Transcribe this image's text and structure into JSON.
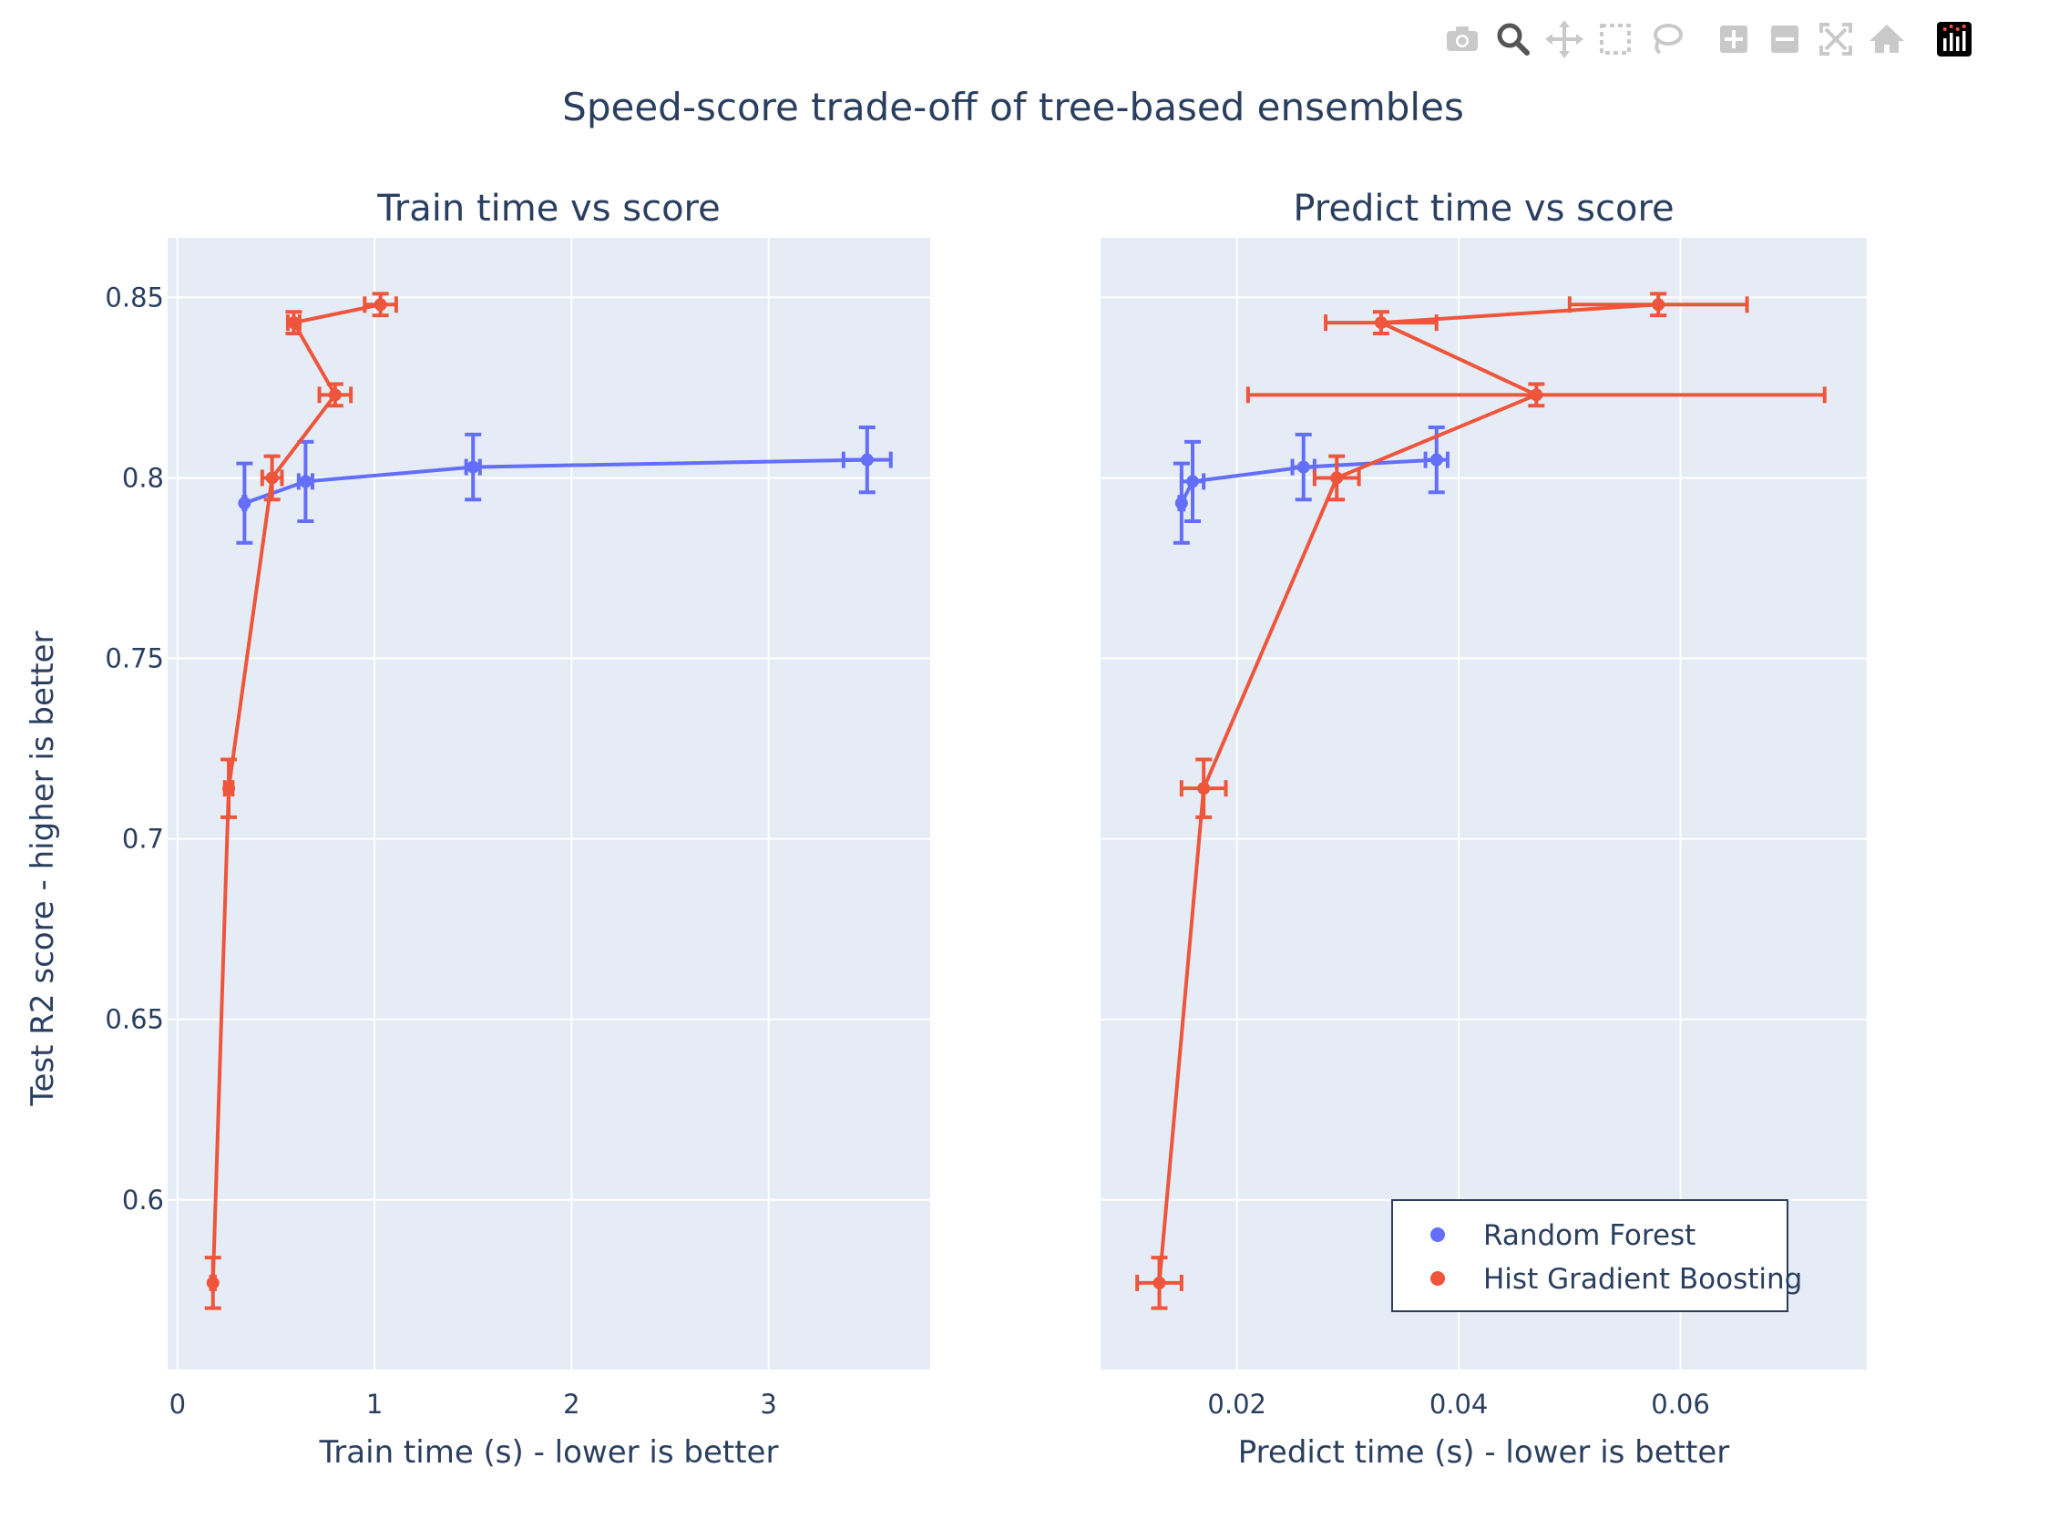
{
  "title": "Speed-score trade-off of tree-based ensembles",
  "ylabel": "Test R2 score - higher is better",
  "toolbar": {
    "icons": [
      "camera-icon",
      "zoom-icon",
      "pan-icon",
      "box-select-icon",
      "lasso-select-icon",
      "zoom-in-icon",
      "zoom-out-icon",
      "autoscale-icon",
      "reset-axes-icon",
      "plotly-logo-icon"
    ]
  },
  "colors": {
    "rf": "#636efa",
    "hgb": "#ef553b",
    "plot_bg": "#e5ecf6",
    "grid": "#ffffff",
    "text": "#2a3f5f"
  },
  "legend": {
    "placement": "bottom-right",
    "entries": [
      "Random Forest",
      "Hist Gradient Boosting"
    ]
  },
  "chart_data": [
    {
      "type": "scatter",
      "title": "Train time vs score",
      "xlabel": "Train time (s) - lower is better",
      "ylabel": "Test R2 score - higher is better",
      "xlim": [
        -0.05,
        3.82
      ],
      "ylim": [
        0.553,
        0.8665
      ],
      "xticks": [
        0,
        1,
        2,
        3
      ],
      "xtick_labels": [
        "0",
        "1",
        "2",
        "3"
      ],
      "yticks": [
        0.6,
        0.65,
        0.7,
        0.75,
        0.8,
        0.85
      ],
      "ytick_labels": [
        "0.6",
        "0.65",
        "0.7",
        "0.75",
        "0.8",
        "0.85"
      ],
      "grid": true,
      "series": [
        {
          "name": "Random Forest",
          "color": "#636efa",
          "x": [
            0.34,
            0.65,
            1.5,
            3.5
          ],
          "y": [
            0.793,
            0.799,
            0.803,
            0.805
          ],
          "x_err": [
            0.005,
            0.035,
            0.035,
            0.12
          ],
          "y_err": [
            0.011,
            0.011,
            0.009,
            0.009
          ]
        },
        {
          "name": "Hist Gradient Boosting",
          "color": "#ef553b",
          "x": [
            0.18,
            0.26,
            0.48,
            0.8,
            0.59,
            1.03
          ],
          "y": [
            0.577,
            0.714,
            0.8,
            0.823,
            0.843,
            0.848
          ],
          "x_err": [
            0.01,
            0.02,
            0.05,
            0.08,
            0.03,
            0.08
          ],
          "y_err": [
            0.007,
            0.008,
            0.006,
            0.003,
            0.003,
            0.003
          ]
        }
      ]
    },
    {
      "type": "scatter",
      "title": "Predict time vs score",
      "xlabel": "Predict time (s) - lower is better",
      "ylabel": "",
      "xlim": [
        0.0077,
        0.0768
      ],
      "ylim": [
        0.553,
        0.8665
      ],
      "xticks": [
        0.02,
        0.04,
        0.06
      ],
      "xtick_labels": [
        "0.02",
        "0.04",
        "0.06"
      ],
      "yticks": [
        0.6,
        0.65,
        0.7,
        0.75,
        0.8,
        0.85
      ],
      "ytick_labels": [],
      "grid": true,
      "series": [
        {
          "name": "Random Forest",
          "color": "#636efa",
          "x": [
            0.015,
            0.016,
            0.026,
            0.038
          ],
          "y": [
            0.793,
            0.799,
            0.803,
            0.805
          ],
          "x_err": [
            0.0002,
            0.001,
            0.001,
            0.001
          ],
          "y_err": [
            0.011,
            0.011,
            0.009,
            0.009
          ]
        },
        {
          "name": "Hist Gradient Boosting",
          "color": "#ef553b",
          "x": [
            0.013,
            0.017,
            0.029,
            0.047,
            0.033,
            0.058
          ],
          "y": [
            0.577,
            0.714,
            0.8,
            0.823,
            0.843,
            0.848
          ],
          "x_err": [
            0.002,
            0.002,
            0.002,
            0.026,
            0.005,
            0.008
          ],
          "y_err": [
            0.007,
            0.008,
            0.006,
            0.003,
            0.003,
            0.003
          ]
        }
      ]
    }
  ]
}
